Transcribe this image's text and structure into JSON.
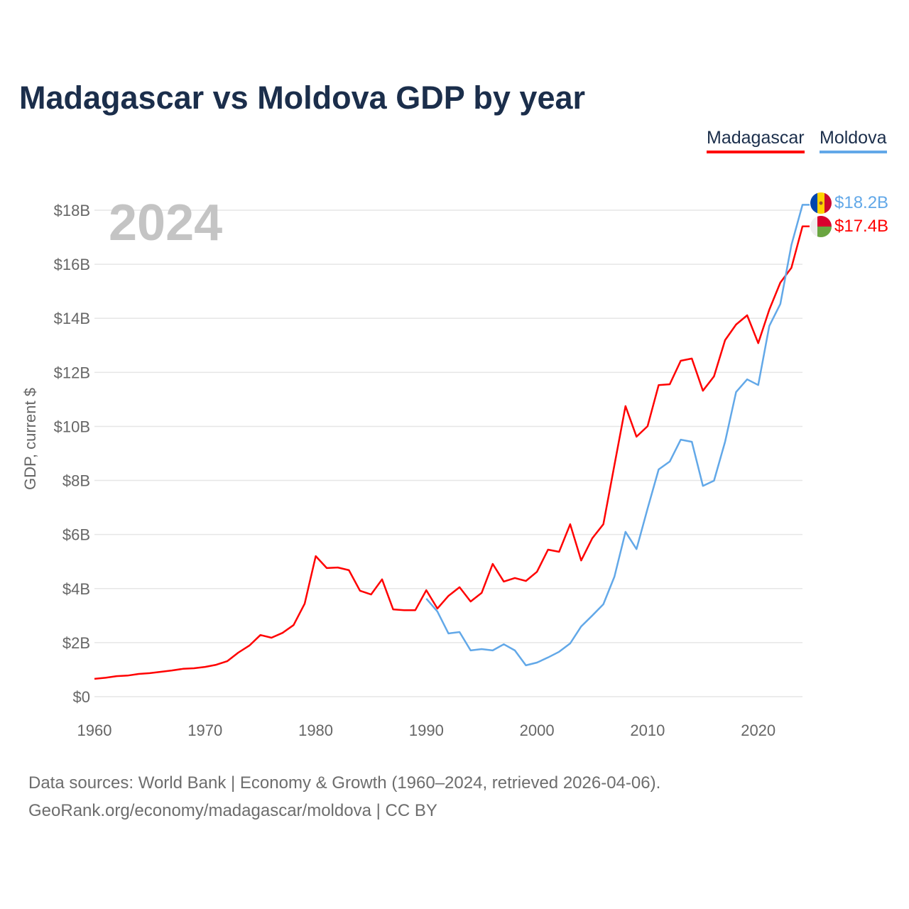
{
  "chart_data": {
    "type": "line",
    "title": "Madagascar vs Moldova GDP by year",
    "ylabel": "GDP, current $",
    "xlabel": "",
    "year_label": "2024",
    "xlim": [
      1960,
      2024
    ],
    "ylim": [
      0,
      18
    ],
    "x_ticks": [
      "1960",
      "1970",
      "1980",
      "1990",
      "2000",
      "2010",
      "2020"
    ],
    "x_tick_values": [
      1960,
      1970,
      1980,
      1990,
      2000,
      2010,
      2020
    ],
    "y_ticks": [
      "$0",
      "$2B",
      "$4B",
      "$6B",
      "$8B",
      "$10B",
      "$12B",
      "$14B",
      "$16B",
      "$18B"
    ],
    "y_tick_values": [
      0,
      2,
      4,
      6,
      8,
      10,
      12,
      14,
      16,
      18
    ],
    "grid": true,
    "legend_position": "top-right",
    "series": [
      {
        "name": "Madagascar",
        "color": "#ff0000",
        "end_label": "$17.4B",
        "start_year": 1960,
        "values": [
          0.66,
          0.7,
          0.76,
          0.78,
          0.84,
          0.87,
          0.92,
          0.97,
          1.03,
          1.05,
          1.1,
          1.18,
          1.31,
          1.63,
          1.89,
          2.28,
          2.18,
          2.36,
          2.65,
          3.44,
          5.2,
          4.76,
          4.78,
          4.68,
          3.92,
          3.78,
          4.34,
          3.23,
          3.2,
          3.2,
          3.94,
          3.26,
          3.73,
          4.05,
          3.52,
          3.84,
          4.91,
          4.26,
          4.39,
          4.28,
          4.62,
          5.44,
          5.36,
          6.38,
          5.04,
          5.86,
          6.38,
          8.57,
          10.75,
          9.62,
          10.01,
          11.53,
          11.56,
          12.43,
          12.51,
          11.32,
          11.85,
          13.19,
          13.77,
          14.11,
          13.08,
          14.32,
          15.32,
          15.87,
          17.4
        ]
      },
      {
        "name": "Moldova",
        "color": "#62a8e8",
        "end_label": "$18.2B",
        "start_year": 1990,
        "values": [
          3.63,
          3.15,
          2.34,
          2.39,
          1.71,
          1.76,
          1.71,
          1.94,
          1.71,
          1.16,
          1.26,
          1.45,
          1.66,
          1.97,
          2.6,
          3.0,
          3.42,
          4.44,
          6.1,
          5.46,
          6.96,
          8.41,
          8.7,
          9.51,
          9.43,
          7.8,
          7.99,
          9.43,
          11.27,
          11.74,
          11.53,
          13.72,
          14.53,
          16.71,
          18.2
        ]
      }
    ]
  },
  "footer": {
    "line1": "Data sources: World Bank | Economy & Growth (1960–2024, retrieved 2026-04-06).",
    "line2": "GeoRank.org/economy/madagascar/moldova | CC BY"
  }
}
